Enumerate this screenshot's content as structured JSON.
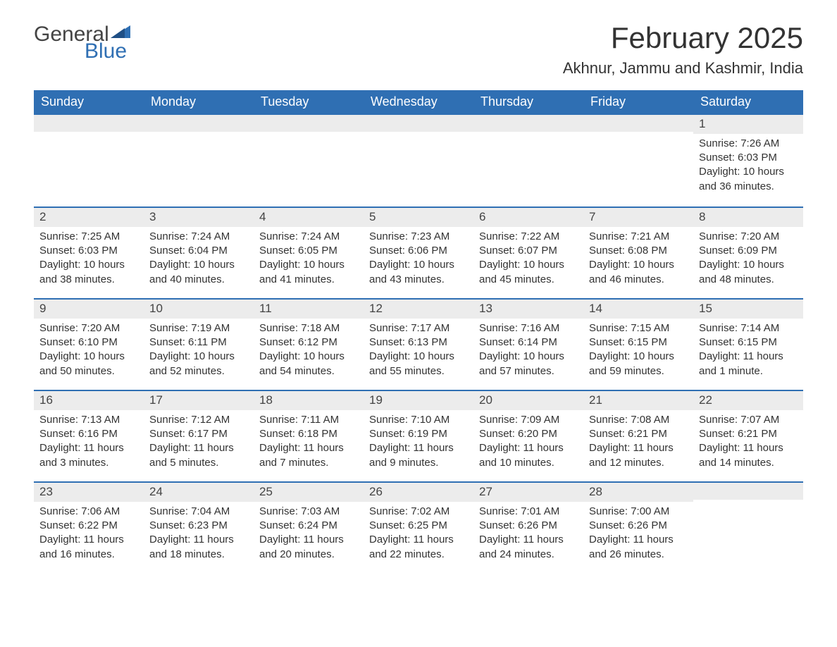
{
  "logo": {
    "word1": "General",
    "word2": "Blue"
  },
  "title": "February 2025",
  "subtitle": "Akhnur, Jammu and Kashmir, India",
  "colors": {
    "header_bg": "#2f6fb3",
    "header_text": "#ffffff",
    "row_border": "#2f6fb3",
    "daynum_bg": "#ececec",
    "body_text": "#333333",
    "logo_gray": "#444444",
    "logo_blue": "#2f6fb3",
    "background": "#ffffff"
  },
  "typography": {
    "title_fontsize": 42,
    "subtitle_fontsize": 22,
    "header_fontsize": 18,
    "body_fontsize": 15,
    "font_family": "Segoe UI"
  },
  "dayHeaders": [
    "Sunday",
    "Monday",
    "Tuesday",
    "Wednesday",
    "Thursday",
    "Friday",
    "Saturday"
  ],
  "weeks": [
    [
      null,
      null,
      null,
      null,
      null,
      null,
      {
        "num": "1",
        "sunrise": "7:26 AM",
        "sunset": "6:03 PM",
        "daylight": "10 hours and 36 minutes."
      }
    ],
    [
      {
        "num": "2",
        "sunrise": "7:25 AM",
        "sunset": "6:03 PM",
        "daylight": "10 hours and 38 minutes."
      },
      {
        "num": "3",
        "sunrise": "7:24 AM",
        "sunset": "6:04 PM",
        "daylight": "10 hours and 40 minutes."
      },
      {
        "num": "4",
        "sunrise": "7:24 AM",
        "sunset": "6:05 PM",
        "daylight": "10 hours and 41 minutes."
      },
      {
        "num": "5",
        "sunrise": "7:23 AM",
        "sunset": "6:06 PM",
        "daylight": "10 hours and 43 minutes."
      },
      {
        "num": "6",
        "sunrise": "7:22 AM",
        "sunset": "6:07 PM",
        "daylight": "10 hours and 45 minutes."
      },
      {
        "num": "7",
        "sunrise": "7:21 AM",
        "sunset": "6:08 PM",
        "daylight": "10 hours and 46 minutes."
      },
      {
        "num": "8",
        "sunrise": "7:20 AM",
        "sunset": "6:09 PM",
        "daylight": "10 hours and 48 minutes."
      }
    ],
    [
      {
        "num": "9",
        "sunrise": "7:20 AM",
        "sunset": "6:10 PM",
        "daylight": "10 hours and 50 minutes."
      },
      {
        "num": "10",
        "sunrise": "7:19 AM",
        "sunset": "6:11 PM",
        "daylight": "10 hours and 52 minutes."
      },
      {
        "num": "11",
        "sunrise": "7:18 AM",
        "sunset": "6:12 PM",
        "daylight": "10 hours and 54 minutes."
      },
      {
        "num": "12",
        "sunrise": "7:17 AM",
        "sunset": "6:13 PM",
        "daylight": "10 hours and 55 minutes."
      },
      {
        "num": "13",
        "sunrise": "7:16 AM",
        "sunset": "6:14 PM",
        "daylight": "10 hours and 57 minutes."
      },
      {
        "num": "14",
        "sunrise": "7:15 AM",
        "sunset": "6:15 PM",
        "daylight": "10 hours and 59 minutes."
      },
      {
        "num": "15",
        "sunrise": "7:14 AM",
        "sunset": "6:15 PM",
        "daylight": "11 hours and 1 minute."
      }
    ],
    [
      {
        "num": "16",
        "sunrise": "7:13 AM",
        "sunset": "6:16 PM",
        "daylight": "11 hours and 3 minutes."
      },
      {
        "num": "17",
        "sunrise": "7:12 AM",
        "sunset": "6:17 PM",
        "daylight": "11 hours and 5 minutes."
      },
      {
        "num": "18",
        "sunrise": "7:11 AM",
        "sunset": "6:18 PM",
        "daylight": "11 hours and 7 minutes."
      },
      {
        "num": "19",
        "sunrise": "7:10 AM",
        "sunset": "6:19 PM",
        "daylight": "11 hours and 9 minutes."
      },
      {
        "num": "20",
        "sunrise": "7:09 AM",
        "sunset": "6:20 PM",
        "daylight": "11 hours and 10 minutes."
      },
      {
        "num": "21",
        "sunrise": "7:08 AM",
        "sunset": "6:21 PM",
        "daylight": "11 hours and 12 minutes."
      },
      {
        "num": "22",
        "sunrise": "7:07 AM",
        "sunset": "6:21 PM",
        "daylight": "11 hours and 14 minutes."
      }
    ],
    [
      {
        "num": "23",
        "sunrise": "7:06 AM",
        "sunset": "6:22 PM",
        "daylight": "11 hours and 16 minutes."
      },
      {
        "num": "24",
        "sunrise": "7:04 AM",
        "sunset": "6:23 PM",
        "daylight": "11 hours and 18 minutes."
      },
      {
        "num": "25",
        "sunrise": "7:03 AM",
        "sunset": "6:24 PM",
        "daylight": "11 hours and 20 minutes."
      },
      {
        "num": "26",
        "sunrise": "7:02 AM",
        "sunset": "6:25 PM",
        "daylight": "11 hours and 22 minutes."
      },
      {
        "num": "27",
        "sunrise": "7:01 AM",
        "sunset": "6:26 PM",
        "daylight": "11 hours and 24 minutes."
      },
      {
        "num": "28",
        "sunrise": "7:00 AM",
        "sunset": "6:26 PM",
        "daylight": "11 hours and 26 minutes."
      },
      null
    ]
  ],
  "labels": {
    "sunrise": "Sunrise: ",
    "sunset": "Sunset: ",
    "daylight": "Daylight: "
  }
}
